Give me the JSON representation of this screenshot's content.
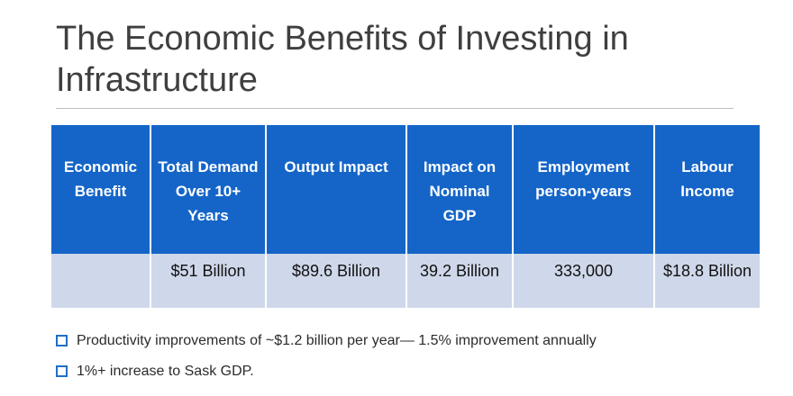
{
  "slide": {
    "title": "The Economic Benefits of Investing in Infrastructure"
  },
  "table": {
    "headers": [
      "Economic Benefit",
      "Total Demand Over 10+ Years",
      "Output Impact",
      "Impact on Nominal GDP",
      "Employment person-years",
      "Labour Income"
    ],
    "row": [
      "",
      "$51 Billion",
      "$89.6 Billion",
      "39.2 Billion",
      "333,000",
      "$18.8 Billion"
    ],
    "header_color": "#1565c8",
    "row_color": "#cfd8ea"
  },
  "bullets": [
    "Productivity improvements  of ~$1.2 billion per year— 1.5%  improvement annually",
    " 1%+ increase to Sask GDP."
  ],
  "bullet_icon": "checkbox-square-icon",
  "bullet_color": "#1f6fc5"
}
